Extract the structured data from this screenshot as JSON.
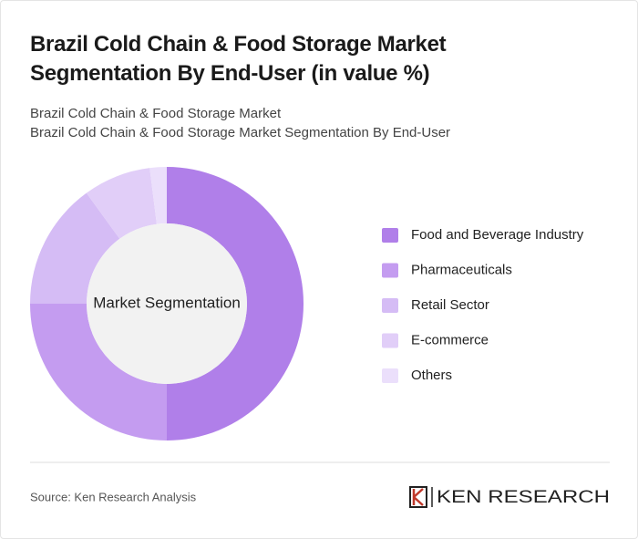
{
  "chart_data": {
    "type": "pie",
    "title": [
      "Brazil Cold Chain & Food Storage Market",
      "Segmentation By End-User (in value %)"
    ],
    "subtitle": [
      "Brazil Cold Chain & Food Storage Market",
      "Brazil Cold Chain & Food Storage Market Segmentation By End-User"
    ],
    "center_label": "Market Segmentation",
    "categories": [
      "Food and Beverage Industry",
      "Pharmaceuticals",
      "Retail Sector",
      "E-commerce",
      "Others"
    ],
    "values": [
      50,
      25,
      15,
      8,
      2
    ],
    "colors": [
      "#b07fe9",
      "#c49cf0",
      "#d5bcf5",
      "#e1cef8",
      "#ebdffb"
    ],
    "source": "Source: Ken Research Analysis",
    "logo": "KEN RESEARCH"
  }
}
